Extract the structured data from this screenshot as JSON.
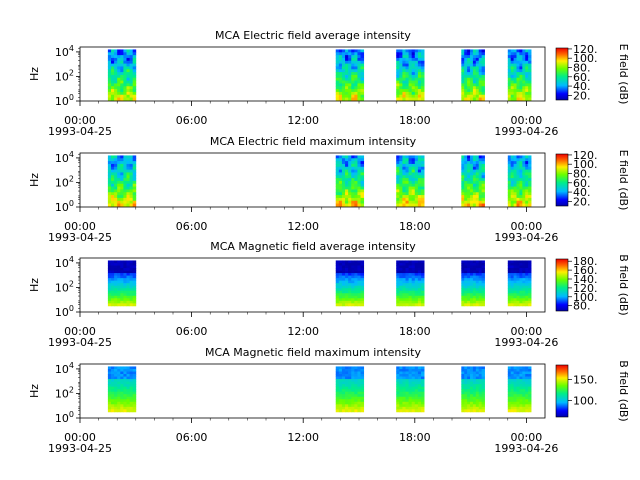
{
  "chart_data": [
    {
      "type": "heatmap",
      "title": "MCA  Electric field average intensity",
      "ylabel": "Hz",
      "colorbar_label": "E field (dB)",
      "colorbar_ticks": [
        "20.",
        "40.",
        "60.",
        "80.",
        "100.",
        "120."
      ],
      "colorbar_range": [
        10,
        122
      ],
      "y_ticks": [
        {
          "label": "10",
          "exp": "0"
        },
        {
          "label": "10",
          "exp": "2"
        },
        {
          "label": "10",
          "exp": "4"
        }
      ],
      "x_ticks": [
        "00:00",
        "06:00",
        "12:00",
        "18:00",
        "00:00"
      ],
      "x_date_start": "1993-04-25",
      "x_date_end": "1993-04-26",
      "data_intervals": [
        [
          "01:30",
          "03:00"
        ],
        [
          "13:45",
          "15:15"
        ],
        [
          "17:00",
          "18:30"
        ],
        [
          "20:30",
          "21:45"
        ],
        [
          "23:00",
          "00:15"
        ]
      ],
      "low_band_level_db": 90,
      "high_band_level_db": 35,
      "has_bursts": true
    },
    {
      "type": "heatmap",
      "title": "MCA  Electric field maximum intensity",
      "ylabel": "Hz",
      "colorbar_label": "E field (dB)",
      "colorbar_ticks": [
        "20.",
        "40.",
        "60.",
        "80.",
        "100.",
        "120."
      ],
      "colorbar_range": [
        10,
        122
      ],
      "y_ticks": [
        {
          "label": "10",
          "exp": "0"
        },
        {
          "label": "10",
          "exp": "2"
        },
        {
          "label": "10",
          "exp": "4"
        }
      ],
      "x_ticks": [
        "00:00",
        "06:00",
        "12:00",
        "18:00",
        "00:00"
      ],
      "x_date_start": "1993-04-25",
      "x_date_end": "1993-04-26",
      "data_intervals": [
        [
          "01:30",
          "03:00"
        ],
        [
          "13:45",
          "15:15"
        ],
        [
          "17:00",
          "18:30"
        ],
        [
          "20:30",
          "21:45"
        ],
        [
          "23:00",
          "00:15"
        ]
      ],
      "low_band_level_db": 95,
      "high_band_level_db": 40,
      "has_bursts": true
    },
    {
      "type": "heatmap",
      "title": "MCA  Magnetic field average intensity",
      "ylabel": "Hz",
      "colorbar_label": "B field (dB)",
      "colorbar_ticks": [
        "80.",
        "100.",
        "120.",
        "140.",
        "160.",
        "180."
      ],
      "colorbar_range": [
        68,
        185
      ],
      "y_ticks": [
        {
          "label": "10",
          "exp": "0"
        },
        {
          "label": "10",
          "exp": "2"
        },
        {
          "label": "10",
          "exp": "4"
        }
      ],
      "x_ticks": [
        "00:00",
        "06:00",
        "12:00",
        "18:00",
        "00:00"
      ],
      "x_date_start": "1993-04-25",
      "x_date_end": "1993-04-26",
      "data_intervals": [
        [
          "01:30",
          "03:00"
        ],
        [
          "13:45",
          "15:15"
        ],
        [
          "17:00",
          "18:30"
        ],
        [
          "20:30",
          "21:45"
        ],
        [
          "23:00",
          "00:15"
        ]
      ],
      "low_band_level_db": 150,
      "high_band_level_db": 75,
      "has_bursts": false
    },
    {
      "type": "heatmap",
      "title": "MCA  Magnetic field maximum intensity",
      "ylabel": "Hz",
      "colorbar_label": "B field (dB)",
      "colorbar_ticks": [
        "100.",
        "150."
      ],
      "colorbar_range": [
        60,
        185
      ],
      "y_ticks": [
        {
          "label": "10",
          "exp": "0"
        },
        {
          "label": "10",
          "exp": "2"
        },
        {
          "label": "10",
          "exp": "4"
        }
      ],
      "x_ticks": [
        "00:00",
        "06:00",
        "12:00",
        "18:00",
        "00:00"
      ],
      "x_date_start": "1993-04-25",
      "x_date_end": "1993-04-26",
      "data_intervals": [
        [
          "01:30",
          "03:00"
        ],
        [
          "13:45",
          "15:15"
        ],
        [
          "17:00",
          "18:30"
        ],
        [
          "20:30",
          "21:45"
        ],
        [
          "23:00",
          "00:15"
        ]
      ],
      "low_band_level_db": 150,
      "high_band_level_db": 95,
      "has_bursts": false
    }
  ]
}
